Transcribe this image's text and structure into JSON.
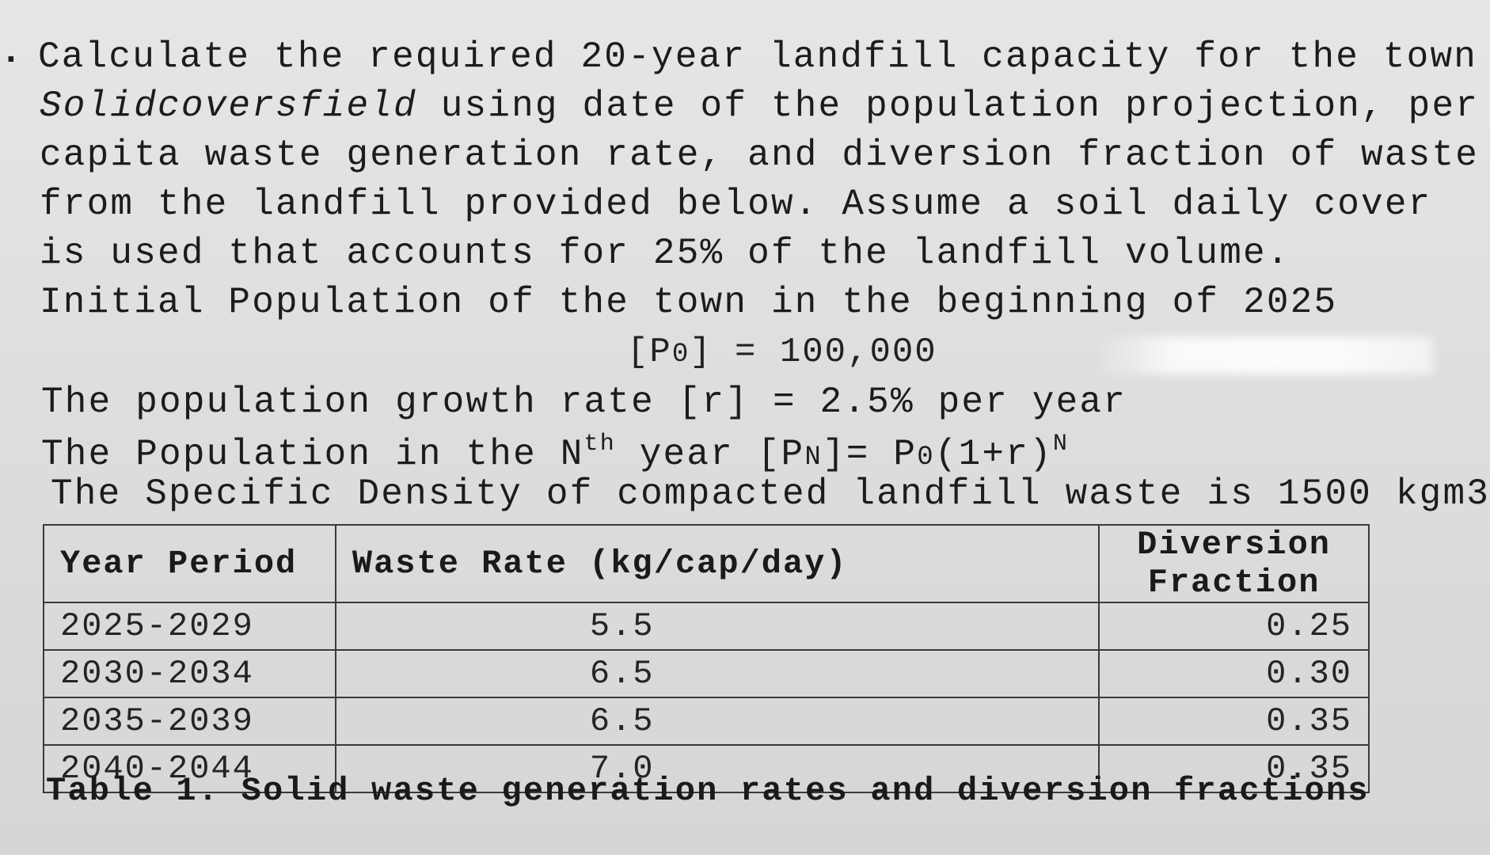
{
  "problem": {
    "bullet": ".",
    "line1": "Calculate the required 20-year landfill capacity for the town",
    "town_name": "Solidcoversfield",
    "line2_rest": "using date of the population projection, per",
    "line3": "capita waste generation rate, and diversion fraction of waste",
    "line4": "from the landfill provided below. Assume a soil daily cover",
    "line5": "is used that accounts for 25% of the landfill volume.",
    "initial_population_label": "Initial Population of the town in the beginning of 2025",
    "p0_label": "[P",
    "p0_sub": "0",
    "p0_value": "] = 100,000",
    "growth_rate": "The population growth rate [r] = 2.5% per year",
    "nth_prefix": "The Population in the N",
    "nth_sup": "th",
    "nth_mid": " year [P",
    "nth_sub_n": "N",
    "nth_eq": "]= P",
    "nth_sub_0": "0",
    "nth_paren": "(1+r)",
    "nth_exp": "N",
    "density": "The Specific Density of compacted landfill waste is 1500 kgm3"
  },
  "table": {
    "headers": [
      "Year Period",
      "Waste Rate (kg/cap/day)",
      "Diversion Fraction"
    ],
    "rows": [
      {
        "period": "2025-2029",
        "rate": "5.5",
        "fraction": "0.25"
      },
      {
        "period": "2030-2034",
        "rate": "6.5",
        "fraction": "0.30"
      },
      {
        "period": "2035-2039",
        "rate": "6.5",
        "fraction": "0.35"
      },
      {
        "period": "2040-2044",
        "rate": "7.0",
        "fraction": "0.35"
      }
    ],
    "caption": "Table 1. Solid waste generation rates and diversion fractions"
  }
}
